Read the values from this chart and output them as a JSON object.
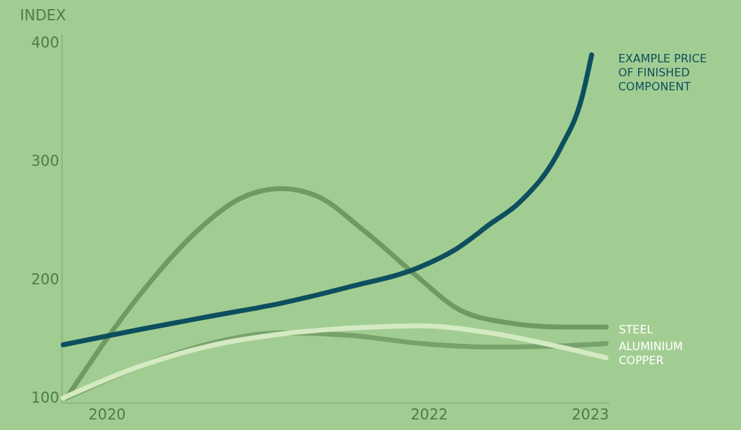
{
  "chart_data": {
    "type": "line",
    "ylabel": "INDEX",
    "xlim": [
      2019.72,
      2023.12
    ],
    "ylim": [
      96,
      408
    ],
    "yticks": [
      100,
      200,
      300,
      400
    ],
    "xticks": [
      2020,
      2022,
      2023
    ],
    "grid": false,
    "legend": false,
    "series": [
      {
        "name": "STEEL",
        "color": "#6f9a62",
        "x": [
          2019.75,
          2020.21,
          2020.56,
          2020.82,
          2021.08,
          2021.3,
          2021.6,
          2021.95,
          2022.17,
          2022.47,
          2022.82,
          2023.1
        ],
        "values": [
          100,
          188,
          241,
          268,
          277,
          271,
          241,
          200,
          176,
          164,
          160,
          160
        ]
      },
      {
        "name": "ALUMINIUM",
        "color": "#78a26b",
        "x": [
          2019.75,
          2020.21,
          2020.64,
          2021.08,
          2021.51,
          2021.95,
          2022.38,
          2022.82,
          2023.1
        ],
        "values": [
          100,
          127,
          146,
          155,
          153,
          146,
          143,
          144,
          146
        ]
      },
      {
        "name": "COPPER",
        "color": "#d4eac2",
        "x": [
          2019.73,
          2020.21,
          2020.64,
          2021.08,
          2021.51,
          2021.95,
          2022.38,
          2022.82,
          2023.1
        ],
        "values": [
          100,
          127,
          144,
          154,
          159,
          161,
          155,
          143,
          134
        ]
      },
      {
        "name": "EXAMPLE PRICE\nOF FINISHED\nCOMPONENT",
        "color": "#0d4f5e",
        "x": [
          2019.73,
          2020.21,
          2020.64,
          2021.08,
          2021.51,
          2021.95,
          2022.17,
          2022.38,
          2022.56,
          2022.82,
          2022.95,
          2023.01
        ],
        "values": [
          145,
          158,
          169,
          180,
          194,
          211,
          226,
          247,
          265,
          312,
          354,
          390
        ]
      }
    ]
  }
}
